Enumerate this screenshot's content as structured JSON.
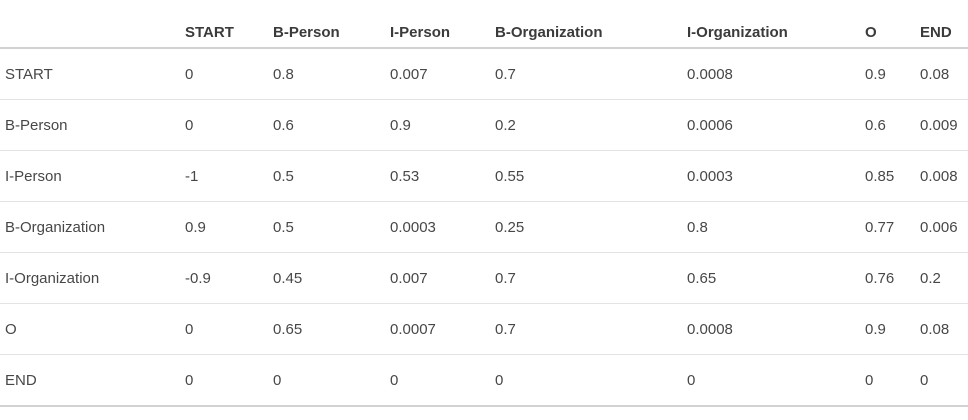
{
  "chart_data": {
    "type": "table",
    "columns": [
      "",
      "START",
      "B-Person",
      "I-Person",
      "B-Organization",
      "I-Organization",
      "O",
      "END"
    ],
    "rows": [
      {
        "label": "START",
        "values": [
          "0",
          "0.8",
          "0.007",
          "0.7",
          "0.0008",
          "0.9",
          "0.08"
        ]
      },
      {
        "label": "B-Person",
        "values": [
          "0",
          "0.6",
          "0.9",
          "0.2",
          "0.0006",
          "0.6",
          "0.009"
        ]
      },
      {
        "label": "I-Person",
        "values": [
          "-1",
          "0.5",
          "0.53",
          "0.55",
          "0.0003",
          "0.85",
          "0.008"
        ]
      },
      {
        "label": "B-Organization",
        "values": [
          "0.9",
          "0.5",
          "0.0003",
          "0.25",
          "0.8",
          "0.77",
          "0.006"
        ]
      },
      {
        "label": "I-Organization",
        "values": [
          "-0.9",
          "0.45",
          "0.007",
          "0.7",
          "0.65",
          "0.76",
          "0.2"
        ]
      },
      {
        "label": "O",
        "values": [
          "0",
          "0.65",
          "0.0007",
          "0.7",
          "0.0008",
          "0.9",
          "0.08"
        ]
      },
      {
        "label": "END",
        "values": [
          "0",
          "0",
          "0",
          "0",
          "0",
          "0",
          "0"
        ]
      }
    ],
    "layout": {
      "grid": "horizontal-rules-only",
      "legend": "none",
      "text_align": "left",
      "header_style": "bold"
    },
    "colors": {
      "background": "#ffffff",
      "text": "#474747",
      "header_text": "#3b3b3b",
      "header_rule": "#d2d2d2",
      "row_rule": "#e3e3e3"
    }
  }
}
